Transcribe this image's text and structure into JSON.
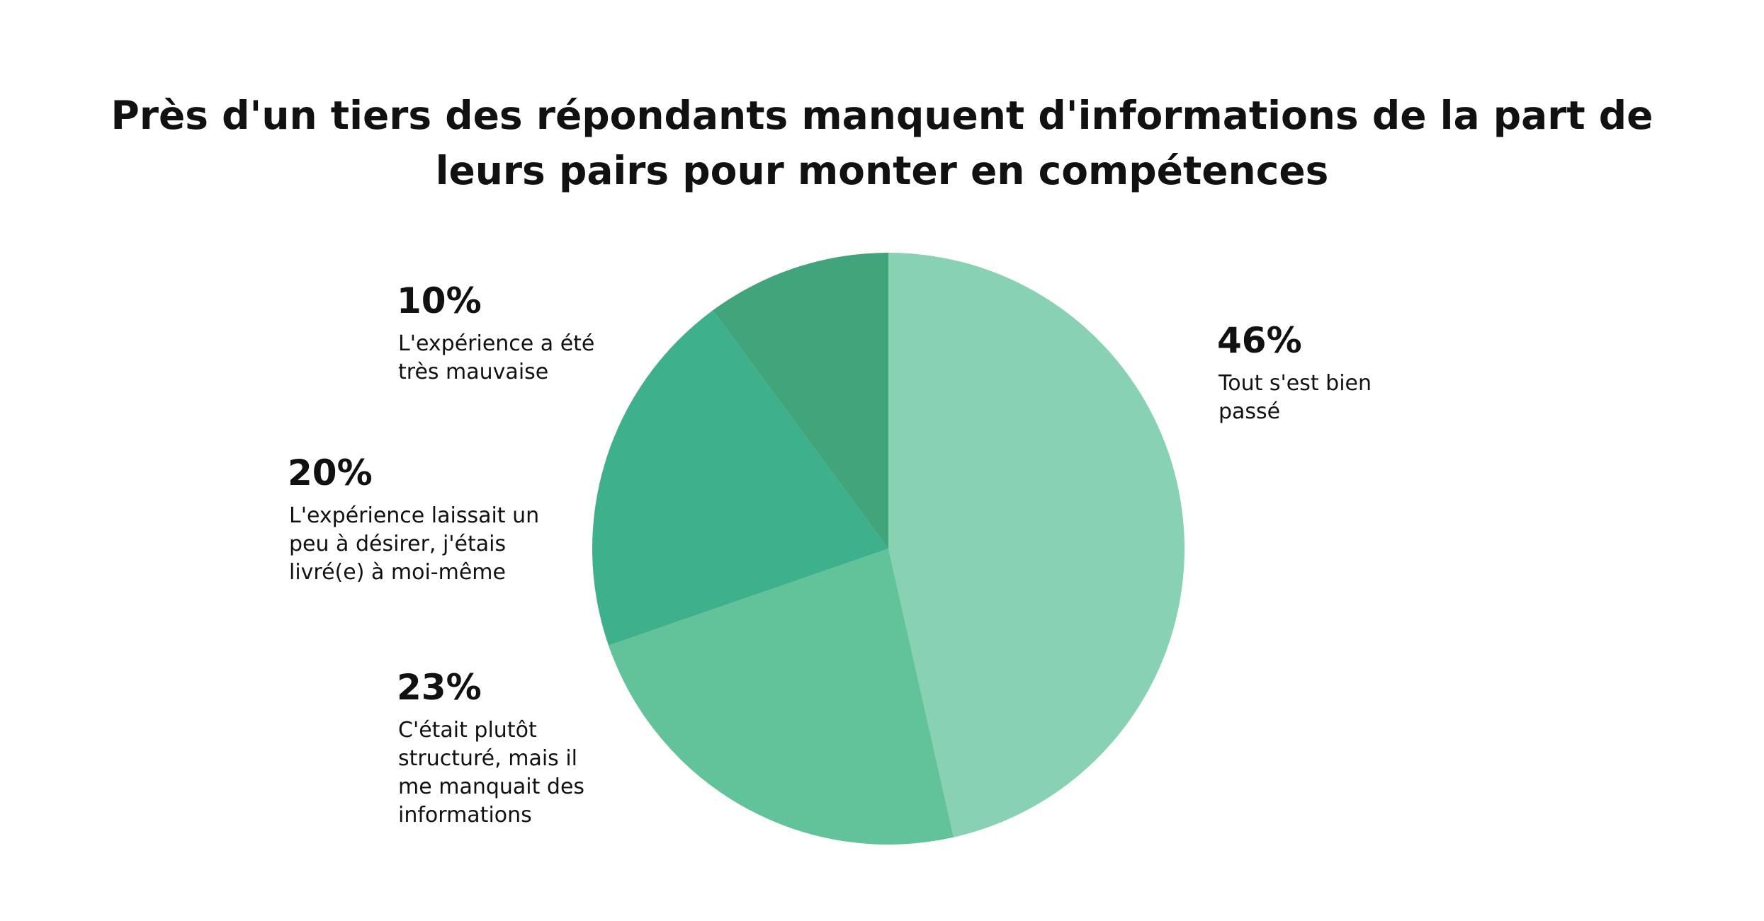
{
  "chart_data": {
    "type": "pie",
    "title_lines": [
      "Près d'un tiers des répondants manquent d'informations de la part de",
      "leurs pairs pour monter en compétences"
    ],
    "slices": [
      {
        "value": 46,
        "value_label": "46%",
        "label_lines": [
          "Tout s'est bien",
          "passé"
        ],
        "color": "#88d1b2"
      },
      {
        "value": 23,
        "value_label": "23%",
        "label_lines": [
          "C'était plutôt",
          "structuré, mais il",
          "me manquait des",
          "informations"
        ],
        "color": "#62c39a"
      },
      {
        "value": 20,
        "value_label": "20%",
        "label_lines": [
          "L'expérience laissait un",
          "peu à désirer, j'étais",
          "livré(e) à moi-même"
        ],
        "color": "#3fb08c"
      },
      {
        "value": 10,
        "value_label": "10%",
        "label_lines": [
          "L'expérience a été",
          "très mauvaise"
        ],
        "color": "#41a47b"
      }
    ],
    "start": "12 o'clock",
    "direction": "clockwise",
    "legend": "none",
    "labels_placement": "outside"
  }
}
